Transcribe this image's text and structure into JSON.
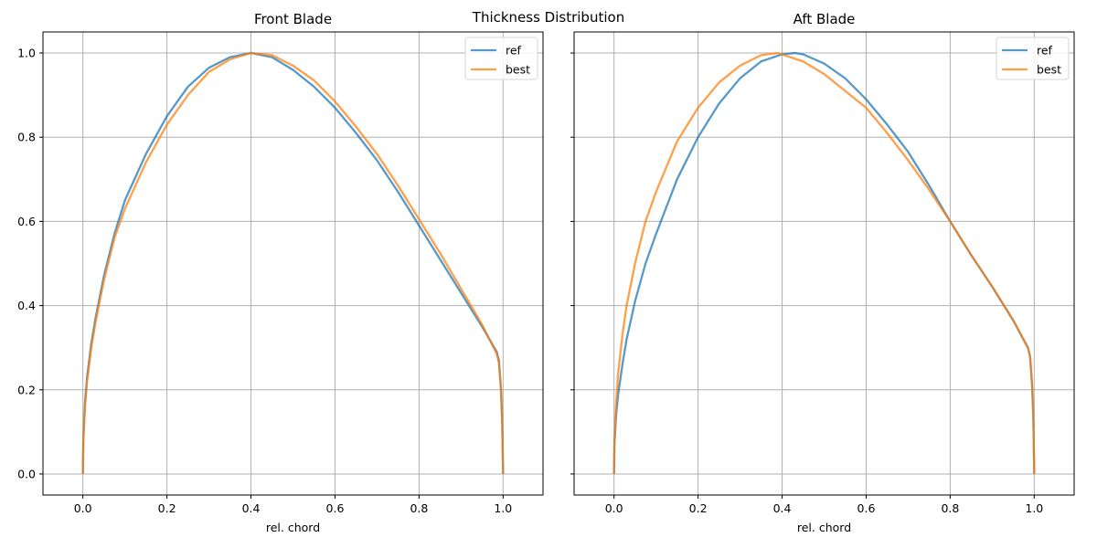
{
  "figure": {
    "title": "Thickness Distribution"
  },
  "chart_data": [
    {
      "type": "line",
      "title": "Front Blade",
      "xlabel": "rel. chord",
      "ylabel": "",
      "xlim": [
        -0.095,
        1.095
      ],
      "ylim": [
        -0.05,
        1.05
      ],
      "xticks": [
        "0.0",
        "0.2",
        "0.4",
        "0.6",
        "0.8",
        "1.0"
      ],
      "yticks": [
        "0.0",
        "0.2",
        "0.4",
        "0.6",
        "0.8",
        "1.0"
      ],
      "grid": true,
      "legend": "top-right",
      "series": [
        {
          "name": "ref",
          "color": "#1f77b4",
          "x": [
            0,
            0.001,
            0.005,
            0.01,
            0.02,
            0.03,
            0.05,
            0.075,
            0.1,
            0.15,
            0.2,
            0.25,
            0.3,
            0.35,
            0.4,
            0.45,
            0.5,
            0.55,
            0.6,
            0.65,
            0.7,
            0.75,
            0.8,
            0.85,
            0.9,
            0.95,
            0.985,
            0.99,
            0.995,
            0.998,
            1.0
          ],
          "y": [
            0,
            0.08,
            0.17,
            0.23,
            0.31,
            0.37,
            0.47,
            0.57,
            0.65,
            0.76,
            0.85,
            0.92,
            0.965,
            0.99,
            1.0,
            0.99,
            0.96,
            0.92,
            0.87,
            0.81,
            0.745,
            0.67,
            0.59,
            0.51,
            0.43,
            0.35,
            0.29,
            0.27,
            0.2,
            0.12,
            0
          ]
        },
        {
          "name": "best",
          "color": "#ff7f0e",
          "x": [
            0,
            0.001,
            0.005,
            0.01,
            0.02,
            0.03,
            0.05,
            0.075,
            0.1,
            0.15,
            0.2,
            0.25,
            0.3,
            0.35,
            0.4,
            0.45,
            0.5,
            0.55,
            0.6,
            0.65,
            0.7,
            0.75,
            0.8,
            0.85,
            0.9,
            0.95,
            0.985,
            0.99,
            0.995,
            0.998,
            1.0
          ],
          "y": [
            0,
            0.08,
            0.16,
            0.22,
            0.3,
            0.36,
            0.46,
            0.56,
            0.63,
            0.74,
            0.83,
            0.9,
            0.955,
            0.985,
            1.0,
            0.995,
            0.97,
            0.935,
            0.885,
            0.825,
            0.76,
            0.685,
            0.605,
            0.525,
            0.44,
            0.355,
            0.285,
            0.265,
            0.2,
            0.12,
            0
          ]
        }
      ]
    },
    {
      "type": "line",
      "title": "Aft Blade",
      "xlabel": "rel. chord",
      "ylabel": "",
      "xlim": [
        -0.095,
        1.095
      ],
      "ylim": [
        -0.05,
        1.05
      ],
      "xticks": [
        "0.0",
        "0.2",
        "0.4",
        "0.6",
        "0.8",
        "1.0"
      ],
      "yticks": [
        "0.0",
        "0.2",
        "0.4",
        "0.6",
        "0.8",
        "1.0"
      ],
      "grid": true,
      "legend": "top-right",
      "series": [
        {
          "name": "ref",
          "color": "#1f77b4",
          "x": [
            0,
            0.001,
            0.005,
            0.01,
            0.02,
            0.03,
            0.05,
            0.075,
            0.1,
            0.15,
            0.2,
            0.25,
            0.3,
            0.35,
            0.4,
            0.43,
            0.45,
            0.5,
            0.55,
            0.6,
            0.65,
            0.7,
            0.75,
            0.8,
            0.85,
            0.9,
            0.95,
            0.985,
            0.99,
            0.995,
            0.998,
            1.0
          ],
          "y": [
            0,
            0.07,
            0.14,
            0.19,
            0.26,
            0.32,
            0.41,
            0.5,
            0.57,
            0.7,
            0.8,
            0.88,
            0.94,
            0.98,
            0.997,
            1.0,
            0.997,
            0.975,
            0.94,
            0.89,
            0.83,
            0.765,
            0.685,
            0.6,
            0.52,
            0.445,
            0.365,
            0.3,
            0.28,
            0.21,
            0.13,
            0
          ]
        },
        {
          "name": "best",
          "color": "#ff7f0e",
          "x": [
            0,
            0.001,
            0.005,
            0.01,
            0.02,
            0.03,
            0.05,
            0.075,
            0.1,
            0.15,
            0.2,
            0.25,
            0.3,
            0.35,
            0.39,
            0.45,
            0.5,
            0.55,
            0.6,
            0.65,
            0.7,
            0.75,
            0.8,
            0.85,
            0.9,
            0.95,
            0.985,
            0.99,
            0.995,
            0.998,
            1.0
          ],
          "y": [
            0,
            0.08,
            0.17,
            0.24,
            0.33,
            0.4,
            0.5,
            0.6,
            0.67,
            0.79,
            0.87,
            0.93,
            0.97,
            0.995,
            1.0,
            0.98,
            0.95,
            0.91,
            0.87,
            0.81,
            0.745,
            0.675,
            0.6,
            0.52,
            0.445,
            0.365,
            0.3,
            0.28,
            0.21,
            0.13,
            0
          ]
        }
      ]
    }
  ]
}
